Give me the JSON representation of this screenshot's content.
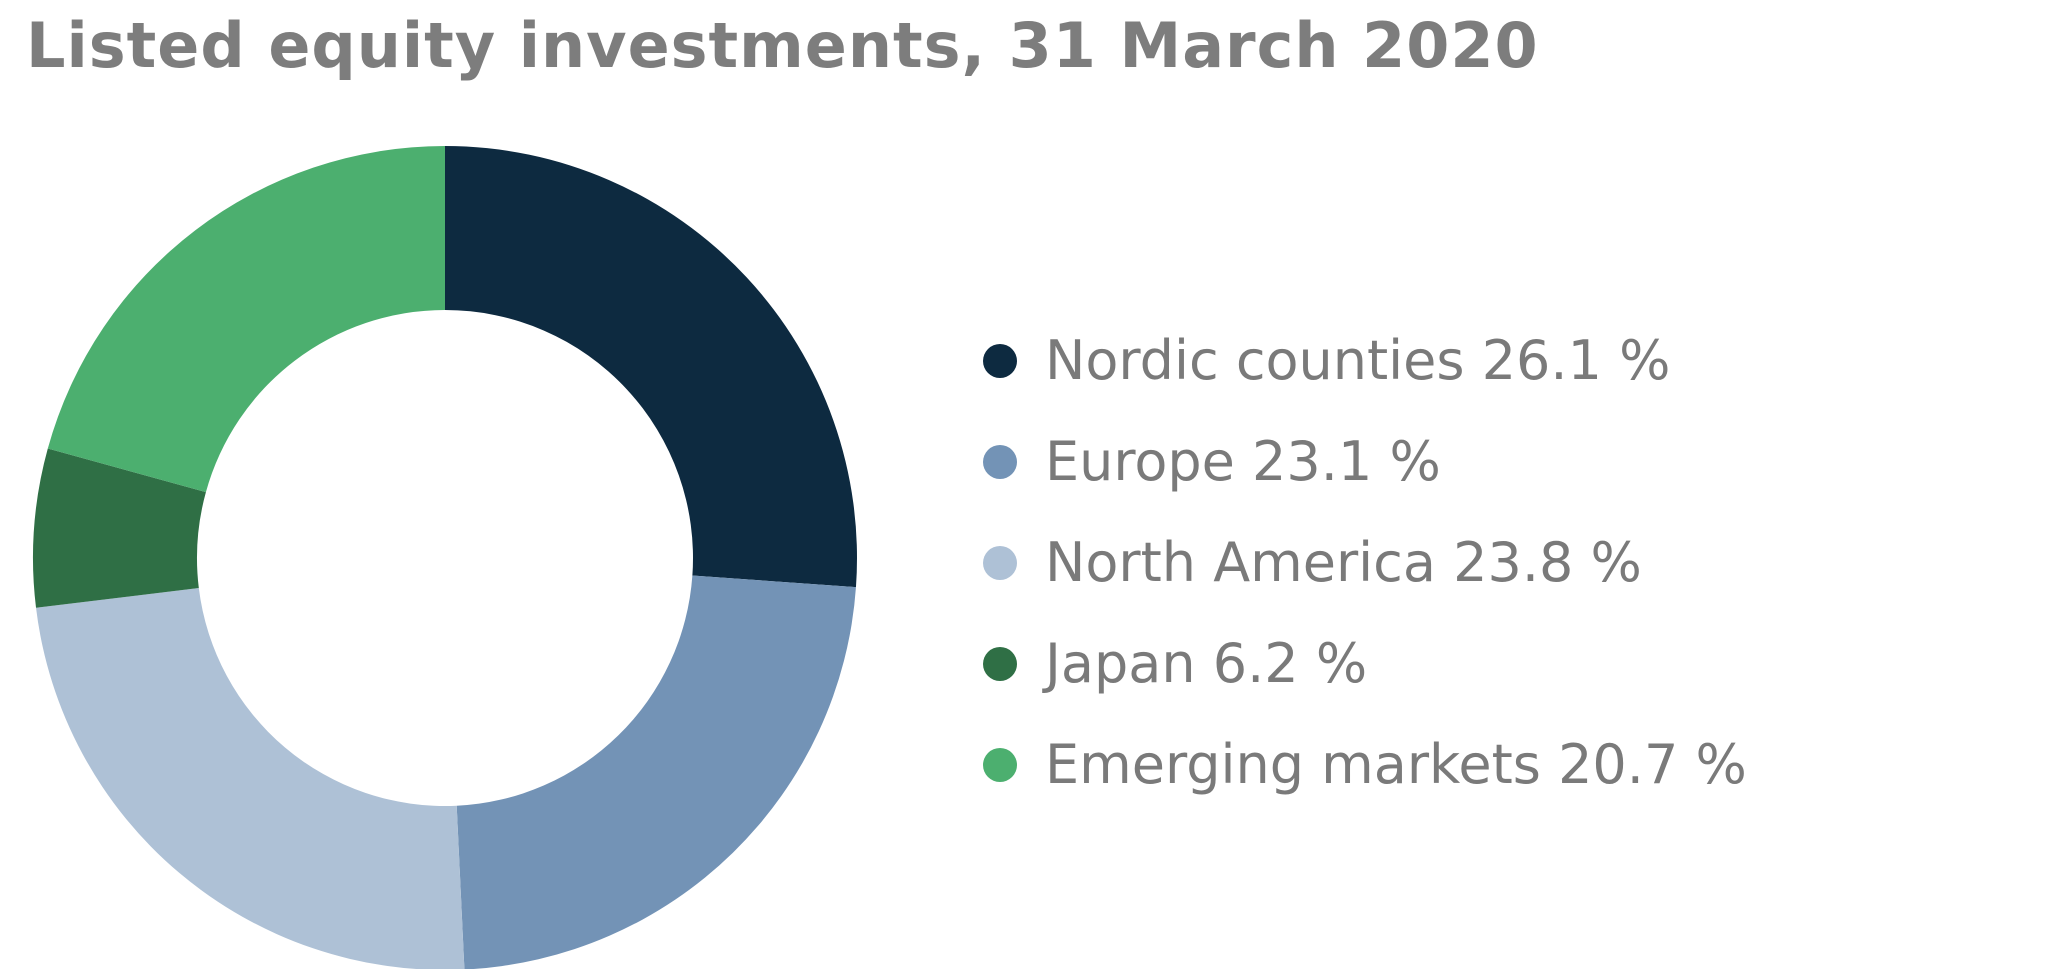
{
  "chart_data": {
    "type": "pie",
    "style": "donut",
    "title": "Listed equity investments, 31 March 2020",
    "unit": "%",
    "slices": [
      {
        "label": "Nordic counties",
        "value": 26.1,
        "legend_text": "Nordic counties 26.1 %",
        "color": "#0d2a40"
      },
      {
        "label": "Europe",
        "value": 23.1,
        "legend_text": "Europe 23.1 %",
        "color": "#7393b6"
      },
      {
        "label": "North America",
        "value": 23.8,
        "legend_text": "North America 23.8 %",
        "color": "#aec1d6"
      },
      {
        "label": "Japan",
        "value": 6.2,
        "legend_text": "Japan 6.2 %",
        "color": "#2f6f45"
      },
      {
        "label": "Emerging markets",
        "value": 20.7,
        "legend_text": "Emerging markets 20.7 %",
        "color": "#4caf6f"
      }
    ],
    "legend_placement": "right",
    "start_angle": "top",
    "direction": "clockwise"
  }
}
